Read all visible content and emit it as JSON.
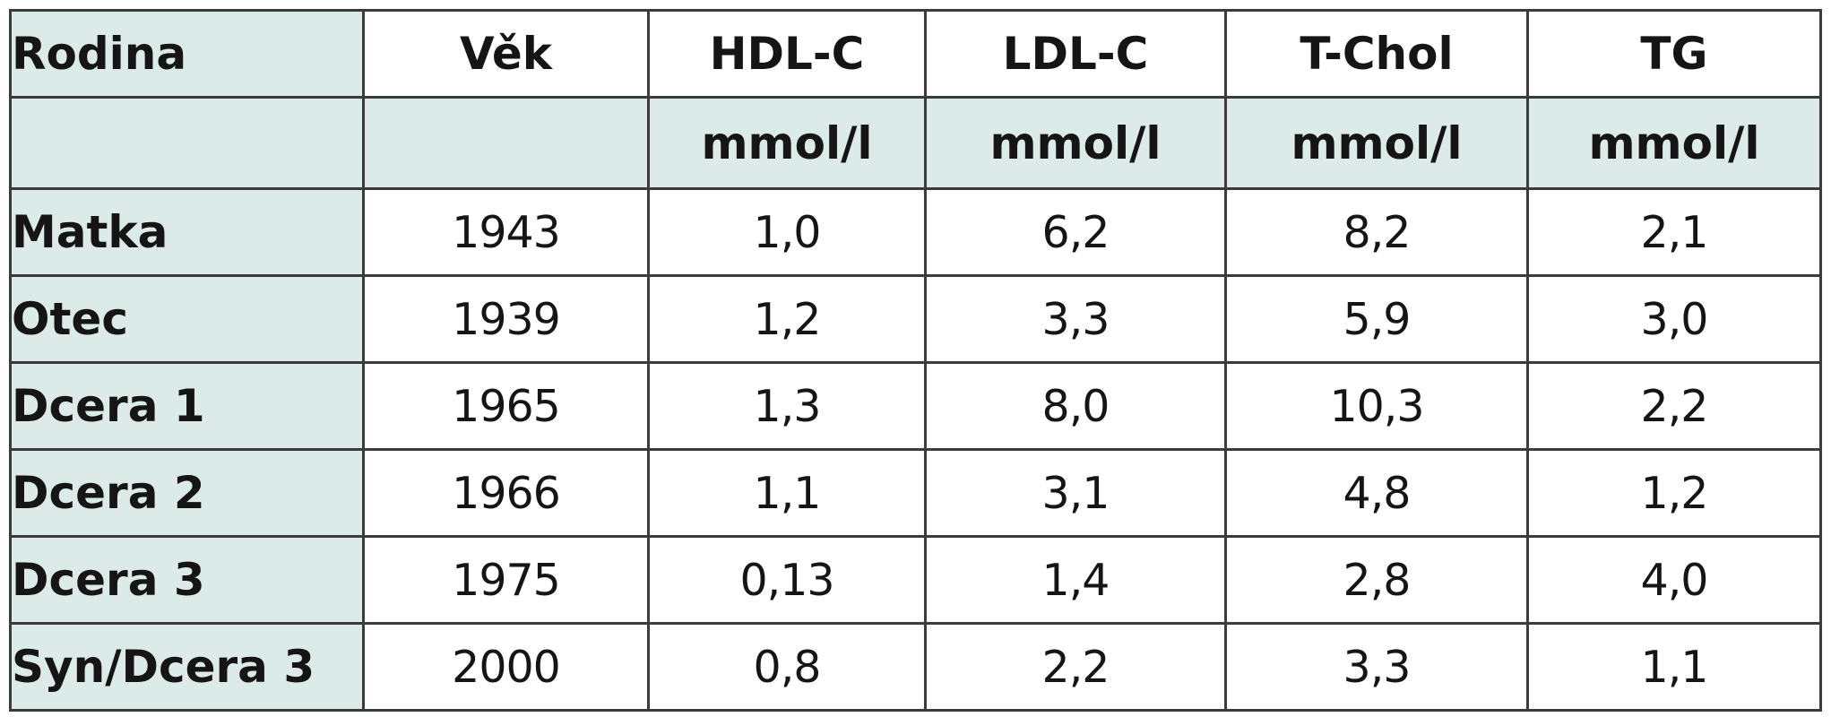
{
  "table": {
    "headers": [
      "Rodina",
      "Věk",
      "HDL-C",
      "LDL-C",
      "T-Chol",
      "TG"
    ],
    "units": [
      "",
      "",
      "mmol/l",
      "mmol/l",
      "mmol/l",
      "mmol/l"
    ],
    "rows": [
      {
        "family": "Matka",
        "values": [
          "1943",
          "1,0",
          "6,2",
          "8,2",
          "2,1"
        ]
      },
      {
        "family": "Otec",
        "values": [
          "1939",
          "1,2",
          "3,3",
          "5,9",
          "3,0"
        ]
      },
      {
        "family": "Dcera 1",
        "values": [
          "1965",
          "1,3",
          "8,0",
          "10,3",
          "2,2"
        ]
      },
      {
        "family": "Dcera 2",
        "values": [
          "1966",
          "1,1",
          "3,1",
          "4,8",
          "1,2"
        ]
      },
      {
        "family": "Dcera 3",
        "values": [
          "1975",
          "0,13",
          "1,4",
          "2,8",
          "4,0"
        ]
      },
      {
        "family": "Syn/Dcera 3",
        "values": [
          "2000",
          "0,8",
          "2,2",
          "3,3",
          "1,1"
        ]
      }
    ]
  },
  "colors": {
    "header_fill": "#dcebe7",
    "border": "#3b3b3b",
    "text": "#151515"
  }
}
